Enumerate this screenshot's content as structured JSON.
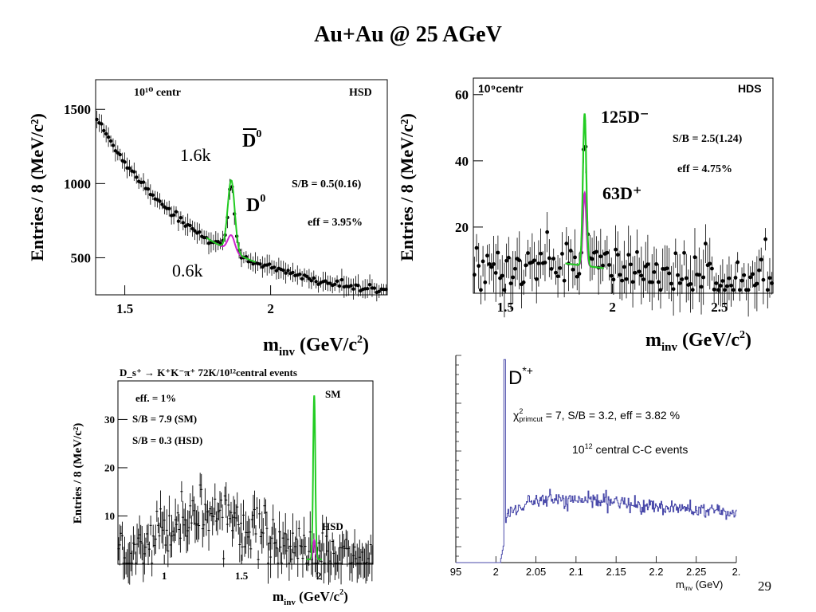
{
  "slide": {
    "title": "Au+Au @ 25 AGeV",
    "page_number": "29"
  },
  "chart_data": [
    {
      "type": "scatter",
      "id": "d0",
      "stats_label": "10¹⁰ centr",
      "model_label": "HSD",
      "ylabel": "Entries / 8 (MeV/c²)",
      "xlabel": "m_inv (GeV/c²)",
      "xlim": [
        1.4,
        2.4
      ],
      "ylim": [
        250,
        1700
      ],
      "xticks": [
        "1.5",
        "2"
      ],
      "yticks": [
        "500",
        "1000",
        "1500"
      ],
      "annotations": {
        "peak_top": "1.6k",
        "peak_bottom": "0.6k",
        "particle_bar": "D0",
        "particle": "D0",
        "sb": "S/B = 0.5(0.16)",
        "eff": "eff = 3.95%"
      },
      "background": {
        "amplitude": 1260,
        "decay": 2.74,
        "offset": 190
      },
      "series": [
        {
          "name": "D̄⁰",
          "color": "#22cc22",
          "peak_x": 1.865,
          "peak_height": 480,
          "sigma": 0.012
        },
        {
          "name": "D⁰",
          "color": "#cc22cc",
          "peak_x": 1.865,
          "peak_height": 110,
          "sigma": 0.012
        }
      ]
    },
    {
      "type": "scatter",
      "id": "dplus",
      "stats_label": "10⁹centr",
      "model_label": "HDS",
      "ylabel": "Entries / 8 (MeV/c²)",
      "xlabel": "m_inv (GeV/c²)",
      "xlim": [
        1.35,
        2.75
      ],
      "ylim": [
        0,
        65
      ],
      "xticks": [
        "1.5",
        "2",
        "2.5"
      ],
      "yticks": [
        "20",
        "40",
        "60"
      ],
      "annotations": {
        "count_top": "125D⁻",
        "count_bottom": "63D⁺",
        "sb": "S/B = 2.5(1.24)",
        "eff": "eff = 4.75%"
      },
      "series": [
        {
          "name": "125D⁻",
          "color": "#22cc22",
          "peak_x": 1.87,
          "peak_height": 46,
          "sigma": 0.008
        },
        {
          "name": "63D⁺",
          "color": "#cc22cc",
          "peak_x": 1.87,
          "peak_height": 22,
          "sigma": 0.008
        }
      ]
    },
    {
      "type": "scatter",
      "id": "ds",
      "header": "D_s⁺ → K⁺K⁻π⁺   72K/10¹²central events",
      "ylabel": "Entries / 8 (MeV/c²)",
      "xlabel": "m_inv (GeV/c²)",
      "xlim": [
        0.7,
        2.35
      ],
      "ylim": [
        0,
        38
      ],
      "xticks": [
        "1",
        "1.5",
        "2"
      ],
      "yticks": [
        "10",
        "20",
        "30"
      ],
      "annotations": {
        "eff": "eff. = 1%",
        "sb_sm": "S/B = 7.9 (SM)",
        "sb_hsd": "S/B = 0.3 (HSD)",
        "sm": "SM",
        "hsd": "HSD"
      },
      "series": [
        {
          "name": "SM",
          "color": "#22cc22",
          "peak_x": 1.97,
          "peak_height": 34,
          "sigma": 0.007
        },
        {
          "name": "HSD",
          "color": "#cc22cc",
          "peak_x": 1.97,
          "peak_height": 4,
          "sigma": 0.007
        }
      ]
    },
    {
      "type": "line",
      "id": "dstar",
      "particle": "D*+",
      "info": "χ²primcut = 7, S/B = 3.2, eff = 3.82 %",
      "events": "10¹² central C-C events",
      "xlabel": "m_inv (GeV)",
      "xlim": [
        1.95,
        2.3
      ],
      "xticks": [
        "95",
        "2",
        "2.05",
        "2.1",
        "2.15",
        "2.2",
        "2.25",
        "2."
      ],
      "series": [
        {
          "name": "D*+",
          "color": "#4a4aaa",
          "peak_x": 2.01,
          "plateau": 0.3
        }
      ]
    }
  ]
}
